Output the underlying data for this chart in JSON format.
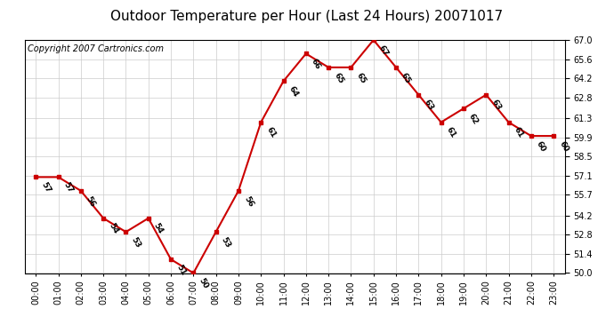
{
  "title": "Outdoor Temperature per Hour (Last 24 Hours) 20071017",
  "copyright_text": "Copyright 2007 Cartronics.com",
  "hours": [
    "00:00",
    "01:00",
    "02:00",
    "03:00",
    "04:00",
    "05:00",
    "06:00",
    "07:00",
    "08:00",
    "09:00",
    "10:00",
    "11:00",
    "12:00",
    "13:00",
    "14:00",
    "15:00",
    "16:00",
    "17:00",
    "18:00",
    "19:00",
    "20:00",
    "21:00",
    "22:00",
    "23:00"
  ],
  "temps": [
    57,
    57,
    56,
    54,
    53,
    54,
    51,
    50,
    53,
    56,
    61,
    64,
    66,
    65,
    65,
    67,
    65,
    63,
    61,
    62,
    63,
    61,
    60,
    60
  ],
  "ylim_min": 50.0,
  "ylim_max": 67.0,
  "yticks": [
    50.0,
    51.4,
    52.8,
    54.2,
    55.7,
    57.1,
    58.5,
    59.9,
    61.3,
    62.8,
    64.2,
    65.6,
    67.0
  ],
  "line_color": "#cc0000",
  "marker_color": "#cc0000",
  "bg_color": "#ffffff",
  "grid_color": "#cccccc",
  "title_fontsize": 11,
  "copyright_fontsize": 7,
  "label_fontsize": 6.5,
  "tick_fontsize": 7
}
